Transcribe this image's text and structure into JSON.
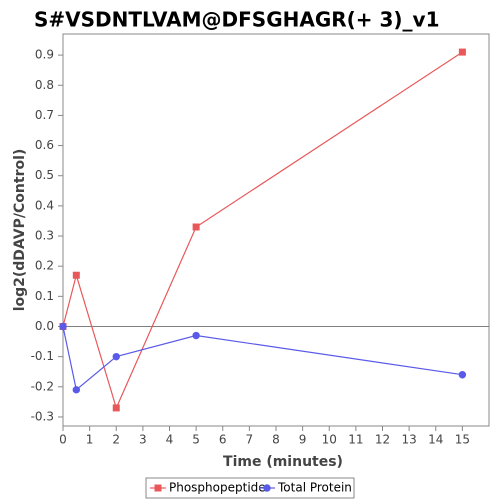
{
  "chart_data": {
    "type": "line",
    "title": "S#VSDNTLVAM@DFSGHAGR(+ 3)_v1",
    "xlabel": "Time (minutes)",
    "ylabel": "log2(dDAVP/Control)",
    "xlim": [
      0,
      16
    ],
    "ylim": [
      -0.33,
      0.97
    ],
    "x_ticks": [
      0,
      1,
      2,
      3,
      4,
      5,
      6,
      7,
      8,
      9,
      10,
      11,
      12,
      13,
      14,
      15
    ],
    "y_ticks": [
      -0.3,
      -0.2,
      -0.1,
      0.0,
      0.1,
      0.2,
      0.3,
      0.4,
      0.5,
      0.6,
      0.7,
      0.8,
      0.9
    ],
    "y_tick_labels": [
      "-0.3",
      "-0.2",
      "-0.1",
      "0.0",
      "0.1",
      "0.2",
      "0.3",
      "0.4",
      "0.5",
      "0.6",
      "0.7",
      "0.8",
      "0.9"
    ],
    "zero_line": true,
    "grid": false,
    "legend_position": "bottom",
    "series": [
      {
        "name": "Phosphopeptide",
        "color": "#e8585a",
        "marker": "square",
        "x": [
          0,
          0.5,
          2,
          5,
          15
        ],
        "y": [
          0.0,
          0.17,
          -0.27,
          0.33,
          0.91
        ]
      },
      {
        "name": "Total Protein",
        "color": "#5a5ae8",
        "marker": "circle",
        "x": [
          0,
          0.5,
          2,
          5,
          15
        ],
        "y": [
          0.0,
          -0.21,
          -0.1,
          -0.03,
          -0.16
        ]
      }
    ]
  }
}
